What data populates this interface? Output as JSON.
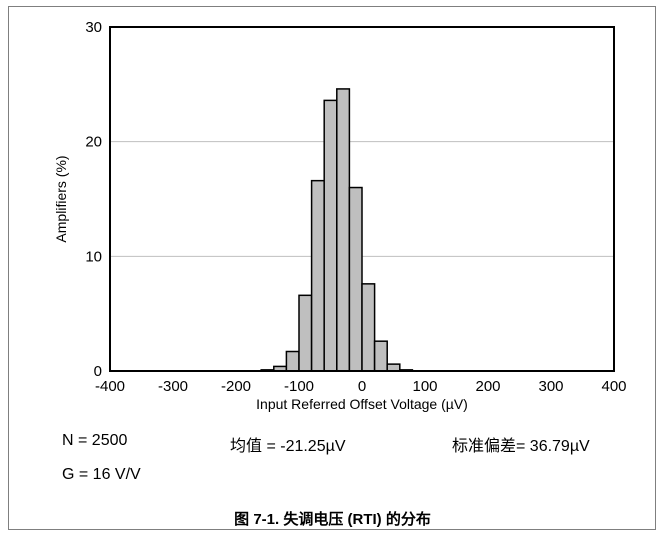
{
  "chart_data": {
    "type": "bar",
    "title": "",
    "xlabel": "Input Referred Offset Voltage (µV)",
    "ylabel": "Amplifiers (%)",
    "xlim": [
      -400,
      400
    ],
    "ylim": [
      0,
      30
    ],
    "x_ticks": [
      "-400",
      "-300",
      "-200",
      "-100",
      "0",
      "100",
      "200",
      "300",
      "400"
    ],
    "y_ticks": [
      "0",
      "10",
      "20",
      "30"
    ],
    "grid": "horizontal",
    "bin_width": 20,
    "bins": [
      {
        "start": -160,
        "value": 0.1
      },
      {
        "start": -140,
        "value": 0.4
      },
      {
        "start": -120,
        "value": 1.7
      },
      {
        "start": -100,
        "value": 6.6
      },
      {
        "start": -80,
        "value": 16.6
      },
      {
        "start": -60,
        "value": 23.6
      },
      {
        "start": -40,
        "value": 24.6
      },
      {
        "start": -20,
        "value": 16.0
      },
      {
        "start": 0,
        "value": 7.6
      },
      {
        "start": 20,
        "value": 2.6
      },
      {
        "start": 40,
        "value": 0.6
      },
      {
        "start": 60,
        "value": 0.1
      }
    ],
    "colors": {
      "bar_fill": "#bfbfbf",
      "bar_stroke": "#000000",
      "grid": "#bfbfbf"
    }
  },
  "stats": {
    "n": "N = 2500",
    "mean": "均值 = -21.25µV",
    "std": "标准偏差= 36.79µV",
    "gain": "G = 16 V/V"
  },
  "caption": "图 7-1. 失调电压 (RTI) 的分布"
}
